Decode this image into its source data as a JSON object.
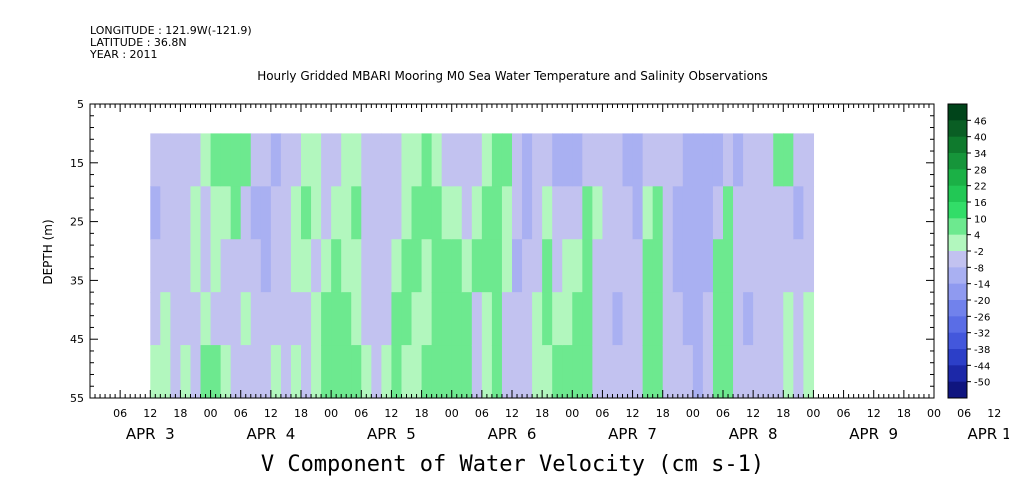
{
  "header": {
    "longitude": "LONGITUDE : 121.9W(-121.9)",
    "latitude": "LATITUDE : 36.8N",
    "year": "YEAR : 2011"
  },
  "chart_data": {
    "type": "heatmap",
    "title": "Hourly Gridded MBARI Mooring M0 Sea Water Temperature and Salinity Observations",
    "xlabel": "V Component of Water Velocity (cm s-1)",
    "ylabel": "DEPTH (m)",
    "y_axis": {
      "range": [
        5,
        55
      ],
      "reversed": true,
      "ticks": [
        5,
        15,
        25,
        35,
        45,
        55
      ]
    },
    "x_axis": {
      "range_hours": [
        0,
        168
      ],
      "hour_ticks": [
        "06",
        "12",
        "18",
        "00",
        "06",
        "12",
        "18",
        "00",
        "06",
        "12",
        "18",
        "00",
        "06",
        "12",
        "18",
        "00",
        "06",
        "12",
        "18",
        "00",
        "06",
        "12",
        "18",
        "00",
        "06",
        "12",
        "18",
        "00",
        "06",
        "12",
        "18",
        "00"
      ],
      "date_labels": [
        "APR  3",
        "APR  4",
        "APR  5",
        "APR  6",
        "APR  7",
        "APR  8",
        "APR  9",
        "APR 10"
      ]
    },
    "data_extent": {
      "depth_top": 10,
      "depth_bottom": 55,
      "start": "APR 3 12",
      "end": "APR 9 15"
    },
    "colorbar": {
      "levels": [
        "46",
        "40",
        "34",
        "28",
        "22",
        "16",
        "10",
        "4",
        "-2",
        "-8",
        "-14",
        "-20",
        "-26",
        "-32",
        "-38",
        "-44",
        "-50"
      ],
      "colors": [
        "#00441a",
        "#0a5e24",
        "#0f7a2d",
        "#16953a",
        "#1bb146",
        "#22c855",
        "#32dd68",
        "#6de98f",
        "#b2f7be",
        "#c2c2f0",
        "#a9b0f2",
        "#8f9af0",
        "#7182ec",
        "#5a6de6",
        "#4357dc",
        "#2c3fc8",
        "#1c28a8",
        "#0f157f"
      ]
    },
    "columns": [
      {
        "t": 12,
        "v": [
          -6,
          -9,
          -6,
          -5,
          0
        ]
      },
      {
        "t": 14,
        "v": [
          -3,
          -8,
          -4,
          2,
          3
        ]
      },
      {
        "t": 16,
        "v": [
          -5,
          -3,
          -8,
          -5,
          -4
        ]
      },
      {
        "t": 18,
        "v": [
          -8,
          -7,
          -6,
          -5,
          2
        ]
      },
      {
        "t": 20,
        "v": [
          -6,
          -2,
          -2,
          -4,
          -6
        ]
      },
      {
        "t": 22,
        "v": [
          -2,
          -5,
          -3,
          -2,
          6
        ]
      },
      {
        "t": 24,
        "v": [
          4,
          2,
          -1,
          -3,
          7
        ]
      },
      {
        "t": 26,
        "v": [
          6,
          3,
          -3,
          -6,
          2
        ]
      },
      {
        "t": 28,
        "v": [
          8,
          4,
          -5,
          -4,
          -5
        ]
      },
      {
        "t": 30,
        "v": [
          4,
          -4,
          -6,
          2,
          -4
        ]
      },
      {
        "t": 32,
        "v": [
          -3,
          -9,
          -8,
          -5,
          -3
        ]
      },
      {
        "t": 34,
        "v": [
          -6,
          -10,
          -9,
          -7,
          -4
        ]
      },
      {
        "t": 36,
        "v": [
          -9,
          -6,
          -7,
          -5,
          0
        ]
      },
      {
        "t": 38,
        "v": [
          -7,
          -3,
          -6,
          -4,
          -5
        ]
      },
      {
        "t": 40,
        "v": [
          -3,
          2,
          -2,
          -6,
          2
        ]
      },
      {
        "t": 42,
        "v": [
          3,
          5,
          0,
          -3,
          -4
        ]
      },
      {
        "t": 44,
        "v": [
          2,
          -2,
          -5,
          3,
          1
        ]
      },
      {
        "t": 46,
        "v": [
          -5,
          -6,
          2,
          5,
          8
        ]
      },
      {
        "t": 48,
        "v": [
          -4,
          -2,
          4,
          8,
          8
        ]
      },
      {
        "t": 50,
        "v": [
          -2,
          3,
          3,
          6,
          9
        ]
      },
      {
        "t": 52,
        "v": [
          2,
          5,
          -2,
          2,
          4
        ]
      },
      {
        "t": 54,
        "v": [
          -4,
          -3,
          -5,
          -4,
          0
        ]
      },
      {
        "t": 56,
        "v": [
          -6,
          -8,
          -7,
          -6,
          -4
        ]
      },
      {
        "t": 58,
        "v": [
          -8,
          -7,
          -4,
          -3,
          2
        ]
      },
      {
        "t": 60,
        "v": [
          -6,
          -4,
          2,
          4,
          5
        ]
      },
      {
        "t": 62,
        "v": [
          -2,
          2,
          5,
          6,
          3
        ]
      },
      {
        "t": 64,
        "v": [
          3,
          6,
          6,
          2,
          2
        ]
      },
      {
        "t": 66,
        "v": [
          5,
          7,
          3,
          -2,
          6
        ]
      },
      {
        "t": 68,
        "v": [
          2,
          4,
          5,
          7,
          8
        ]
      },
      {
        "t": 70,
        "v": [
          -3,
          3,
          7,
          9,
          7
        ]
      },
      {
        "t": 72,
        "v": [
          -6,
          -2,
          5,
          8,
          9
        ]
      },
      {
        "t": 74,
        "v": [
          -8,
          -6,
          2,
          5,
          6
        ]
      },
      {
        "t": 76,
        "v": [
          -5,
          2,
          4,
          -3,
          -4
        ]
      },
      {
        "t": 78,
        "v": [
          2,
          6,
          5,
          2,
          3
        ]
      },
      {
        "t": 80,
        "v": [
          6,
          8,
          6,
          4,
          7
        ]
      },
      {
        "t": 82,
        "v": [
          4,
          3,
          -2,
          -5,
          -3
        ]
      },
      {
        "t": 84,
        "v": [
          -5,
          -8,
          -9,
          -7,
          -6
        ]
      },
      {
        "t": 86,
        "v": [
          -9,
          -10,
          -8,
          -6,
          -5
        ]
      },
      {
        "t": 88,
        "v": [
          -7,
          -5,
          -4,
          2,
          3
        ]
      },
      {
        "t": 90,
        "v": [
          -4,
          3,
          6,
          5,
          3
        ]
      },
      {
        "t": 92,
        "v": [
          -10,
          -3,
          -6,
          -2,
          5
        ]
      },
      {
        "t": 94,
        "v": [
          -12,
          -6,
          -2,
          3,
          4
        ]
      },
      {
        "t": 96,
        "v": [
          -9,
          -3,
          3,
          5,
          8
        ]
      },
      {
        "t": 98,
        "v": [
          -4,
          4,
          7,
          7,
          5
        ]
      },
      {
        "t": 100,
        "v": [
          -6,
          -2,
          -4,
          -5,
          -6
        ]
      },
      {
        "t": 102,
        "v": [
          -8,
          -7,
          -8,
          -7,
          -8
        ]
      },
      {
        "t": 104,
        "v": [
          -7,
          -6,
          -8,
          -9,
          -8
        ]
      },
      {
        "t": 106,
        "v": [
          -9,
          -5,
          -7,
          -6,
          -7
        ]
      },
      {
        "t": 108,
        "v": [
          -13,
          -9,
          -5,
          -6,
          -4
        ]
      },
      {
        "t": 110,
        "v": [
          -8,
          3,
          6,
          5,
          4
        ]
      },
      {
        "t": 112,
        "v": [
          -6,
          6,
          9,
          8,
          6
        ]
      },
      {
        "t": 114,
        "v": [
          -4,
          -3,
          -5,
          -6,
          -4
        ]
      },
      {
        "t": 116,
        "v": [
          -8,
          -9,
          -10,
          -8,
          -7
        ]
      },
      {
        "t": 118,
        "v": [
          -10,
          -9,
          -12,
          -10,
          -8
        ]
      },
      {
        "t": 120,
        "v": [
          -11,
          -10,
          -12,
          -11,
          -9
        ]
      },
      {
        "t": 122,
        "v": [
          -12,
          -9,
          -9,
          -8,
          -7
        ]
      },
      {
        "t": 124,
        "v": [
          -10,
          -3,
          5,
          8,
          6
        ]
      },
      {
        "t": 126,
        "v": [
          -8,
          4,
          8,
          8,
          7
        ]
      },
      {
        "t": 128,
        "v": [
          -9,
          -6,
          -7,
          -7,
          -8
        ]
      },
      {
        "t": 130,
        "v": [
          -8,
          -7,
          -8,
          -9,
          -8
        ]
      },
      {
        "t": 132,
        "v": [
          -6,
          -5,
          -7,
          -8,
          -7
        ]
      },
      {
        "t": 134,
        "v": [
          -3,
          -5,
          -5,
          -4,
          -6
        ]
      },
      {
        "t": 136,
        "v": [
          4,
          -6,
          -6,
          -5,
          -4
        ]
      },
      {
        "t": 138,
        "v": [
          5,
          -8,
          -4,
          3,
          2
        ]
      },
      {
        "t": 140,
        "v": [
          -4,
          -11,
          -6,
          -3,
          -5
        ]
      },
      {
        "t": 142,
        "v": [
          -7,
          -8,
          -5,
          2,
          3
        ]
      }
    ]
  }
}
